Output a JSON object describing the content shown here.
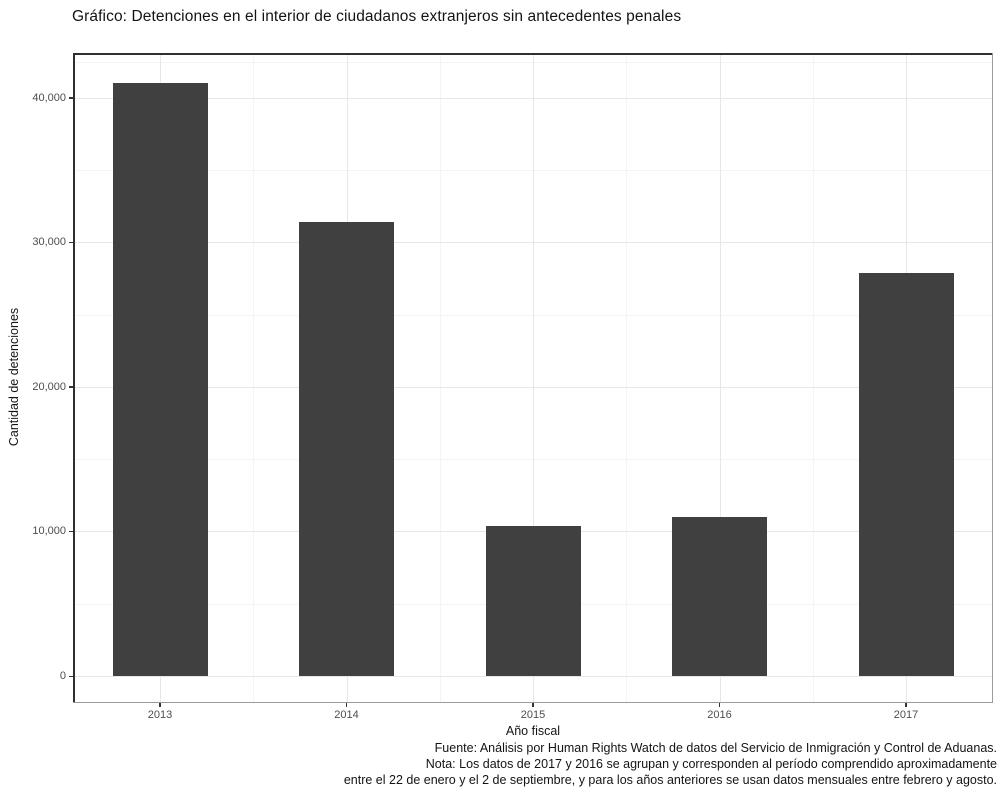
{
  "chart_data": {
    "type": "bar",
    "title": "Gráfico: Detenciones en el interior de ciudadanos extranjeros sin antecedentes penales",
    "xlabel": "Año fiscal",
    "ylabel": "Cantidad de detenciones",
    "categories": [
      "2013",
      "2014",
      "2015",
      "2016",
      "2017"
    ],
    "values": [
      41000,
      31400,
      10350,
      11000,
      27900
    ],
    "ylim": [
      0,
      43000
    ],
    "y_major_ticks": [
      0,
      10000,
      20000,
      30000,
      40000
    ],
    "y_tick_labels": [
      "0",
      "10,000",
      "20,000",
      "30,000",
      "40,000"
    ],
    "y_minor_ticks": [
      5000,
      15000,
      25000,
      35000,
      42500
    ],
    "grid": true,
    "legend": "none",
    "bar_color": "#404040",
    "caption_lines": [
      "Fuente: Análisis por Human Rights Watch de datos del Servicio de Inmigración y Control de Aduanas.",
      "Nota: Los datos de 2017 y 2016 se agrupan y corresponden al período comprendido aproximadamente",
      "entre el 22 de enero y el 2 de septiembre, y para los años anteriores se usan datos mensuales entre febrero y agosto."
    ]
  }
}
